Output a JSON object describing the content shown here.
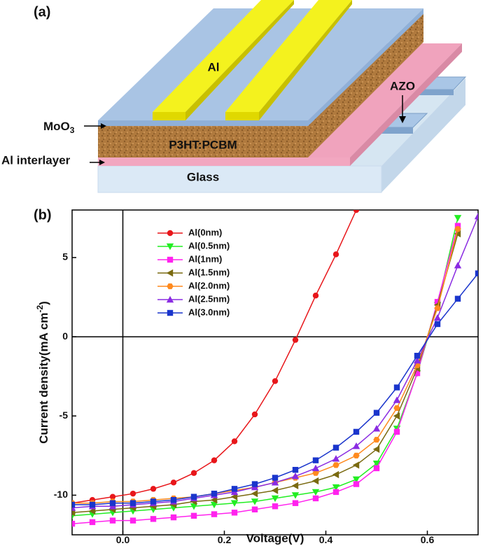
{
  "diagram": {
    "panel_label": "(a)",
    "labels": {
      "al": "Al",
      "azo": "AZO",
      "moo3": [
        "MoO",
        "3"
      ],
      "active": "P3HT:PCBM",
      "interlayer": "Al interlayer",
      "glass": "Glass"
    }
  },
  "chart_data": {
    "type": "line",
    "panel_label": "(b)",
    "xlabel": "Voltage(V)",
    "ylabel": [
      "Current density(mA cm",
      "-2",
      ")"
    ],
    "x": [
      -0.1,
      -0.06,
      -0.02,
      0.02,
      0.06,
      0.1,
      0.14,
      0.18,
      0.22,
      0.26,
      0.3,
      0.34,
      0.38,
      0.42,
      0.46,
      0.5,
      0.54,
      0.58,
      0.62,
      0.66,
      0.7
    ],
    "xlim": [
      -0.1,
      0.7
    ],
    "ylim": [
      -12.5,
      8
    ],
    "xticks": [
      {
        "value": 0,
        "label": "0.0"
      },
      0.2,
      0.4,
      0.6
    ],
    "yticks": [
      -10,
      -5,
      0,
      5
    ],
    "zero_lines": true,
    "legend": "upper-left",
    "series": [
      {
        "name": "Al(0nm)",
        "color": "#e8161a",
        "marker": "circle",
        "values": [
          -10.5,
          -10.3,
          -10.1,
          -9.9,
          -9.6,
          -9.2,
          -8.6,
          -7.8,
          -6.6,
          -4.9,
          -2.8,
          -0.2,
          2.6,
          5.2,
          8.0,
          null,
          null,
          null,
          null,
          null,
          null
        ]
      },
      {
        "name": "Al(0.5nm)",
        "color": "#22ee22",
        "marker": "triangle-down",
        "values": [
          -11.3,
          -11.2,
          -11.1,
          -11.0,
          -10.9,
          -10.8,
          -10.7,
          -10.6,
          -10.5,
          -10.4,
          -10.2,
          -10.0,
          -9.8,
          -9.5,
          -9.0,
          -8.0,
          -5.8,
          -2.3,
          2.0,
          7.5,
          null
        ]
      },
      {
        "name": "Al(1nm)",
        "color": "#ff22ee",
        "marker": "square",
        "values": [
          -11.8,
          -11.7,
          -11.6,
          -11.6,
          -11.5,
          -11.4,
          -11.3,
          -11.2,
          -11.1,
          -10.9,
          -10.7,
          -10.5,
          -10.2,
          -9.8,
          -9.3,
          -8.3,
          -6.0,
          -2.3,
          2.2,
          7.0,
          null
        ]
      },
      {
        "name": "Al(1.5nm)",
        "color": "#7a6a10",
        "marker": "triangle-left",
        "values": [
          -11.1,
          -11.0,
          -10.9,
          -10.8,
          -10.7,
          -10.6,
          -10.4,
          -10.3,
          -10.1,
          -9.9,
          -9.7,
          -9.4,
          -9.1,
          -8.7,
          -8.1,
          -7.1,
          -5.0,
          -2.0,
          2.0,
          6.5,
          null
        ]
      },
      {
        "name": "Al(2.0nm)",
        "color": "#ff8a1e",
        "marker": "hexagon",
        "values": [
          -10.5,
          -10.5,
          -10.4,
          -10.4,
          -10.3,
          -10.2,
          -10.1,
          -9.9,
          -9.7,
          -9.5,
          -9.2,
          -8.9,
          -8.6,
          -8.1,
          -7.5,
          -6.5,
          -4.5,
          -1.8,
          1.8,
          6.8,
          null
        ]
      },
      {
        "name": "Al(2.5nm)",
        "color": "#8a2be2",
        "marker": "triangle-up",
        "values": [
          -10.8,
          -10.7,
          -10.7,
          -10.6,
          -10.5,
          -10.4,
          -10.2,
          -10.0,
          -9.8,
          -9.5,
          -9.2,
          -8.8,
          -8.3,
          -7.7,
          -6.9,
          -5.8,
          -4.0,
          -1.5,
          1.2,
          4.5,
          7.6
        ]
      },
      {
        "name": "Al(3.0nm)",
        "color": "#1a35cc",
        "marker": "square",
        "values": [
          -10.6,
          -10.6,
          -10.5,
          -10.5,
          -10.4,
          -10.3,
          -10.1,
          -9.9,
          -9.6,
          -9.3,
          -8.9,
          -8.4,
          -7.8,
          -7.0,
          -6.0,
          -4.8,
          -3.2,
          -1.2,
          0.8,
          2.4,
          4.0
        ]
      }
    ]
  }
}
